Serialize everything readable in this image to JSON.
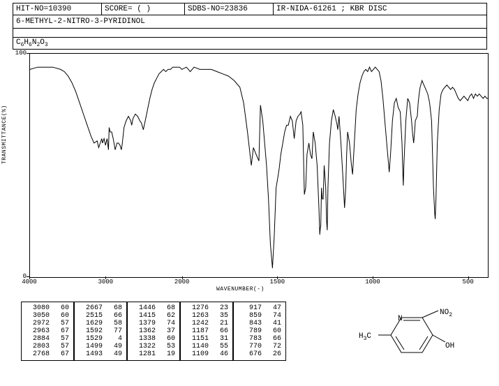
{
  "header": {
    "hit_no": "HIT-NO=10390",
    "score": "SCORE=   (   )",
    "sdbs_no": "SDBS-NO=23836",
    "source": "IR-NIDA-61261 ; KBR DISC",
    "compound_name": "6-METHYL-2-NITRO-3-PYRIDINOL",
    "formula_html": "C<sub>6</sub>H<sub>6</sub>N<sub>2</sub>O<sub>3</sub>"
  },
  "chart": {
    "type": "line",
    "x_label": "WAVENUMBER(-)",
    "y_label": "TRANSMITTANCE(%)",
    "xlim": [
      4000,
      400
    ],
    "ylim": [
      0,
      100
    ],
    "xticks": [
      4000,
      3000,
      2000,
      1500,
      1000,
      500
    ],
    "yticks": [
      0,
      100
    ],
    "x_breakpoint": 2000,
    "background_color": "#ffffff",
    "line_color": "#000000",
    "line_width": 1,
    "border_color": "#000000",
    "font_size": 9,
    "spectrum": [
      [
        4000,
        93
      ],
      [
        3900,
        94
      ],
      [
        3800,
        94
      ],
      [
        3700,
        94
      ],
      [
        3600,
        93
      ],
      [
        3550,
        92
      ],
      [
        3500,
        90
      ],
      [
        3450,
        87
      ],
      [
        3400,
        83
      ],
      [
        3350,
        78
      ],
      [
        3300,
        73
      ],
      [
        3250,
        68
      ],
      [
        3200,
        63
      ],
      [
        3160,
        60
      ],
      [
        3120,
        61
      ],
      [
        3100,
        58
      ],
      [
        3080,
        60
      ],
      [
        3060,
        62
      ],
      [
        3050,
        60
      ],
      [
        3030,
        62
      ],
      [
        3010,
        59
      ],
      [
        2990,
        62
      ],
      [
        2972,
        57
      ],
      [
        2963,
        67
      ],
      [
        2950,
        65
      ],
      [
        2930,
        65
      ],
      [
        2910,
        62
      ],
      [
        2884,
        57
      ],
      [
        2860,
        60
      ],
      [
        2840,
        60
      ],
      [
        2820,
        59
      ],
      [
        2803,
        57
      ],
      [
        2790,
        60
      ],
      [
        2768,
        67
      ],
      [
        2740,
        70
      ],
      [
        2710,
        72
      ],
      [
        2680,
        70
      ],
      [
        2667,
        68
      ],
      [
        2650,
        71
      ],
      [
        2620,
        73
      ],
      [
        2590,
        72
      ],
      [
        2560,
        70
      ],
      [
        2540,
        69
      ],
      [
        2515,
        66
      ],
      [
        2490,
        70
      ],
      [
        2460,
        75
      ],
      [
        2430,
        80
      ],
      [
        2400,
        84
      ],
      [
        2370,
        87
      ],
      [
        2340,
        89
      ],
      [
        2310,
        91
      ],
      [
        2280,
        92
      ],
      [
        2250,
        93
      ],
      [
        2220,
        92
      ],
      [
        2190,
        93
      ],
      [
        2160,
        93
      ],
      [
        2130,
        94
      ],
      [
        2100,
        94
      ],
      [
        2070,
        94
      ],
      [
        2040,
        94
      ],
      [
        2010,
        93
      ],
      [
        1980,
        94
      ],
      [
        1960,
        92
      ],
      [
        1940,
        94
      ],
      [
        1910,
        93
      ],
      [
        1880,
        93
      ],
      [
        1850,
        93
      ],
      [
        1820,
        92
      ],
      [
        1790,
        91
      ],
      [
        1760,
        90
      ],
      [
        1730,
        88
      ],
      [
        1700,
        85
      ],
      [
        1680,
        78
      ],
      [
        1660,
        65
      ],
      [
        1640,
        50
      ],
      [
        1629,
        58
      ],
      [
        1615,
        55
      ],
      [
        1600,
        52
      ],
      [
        1592,
        77
      ],
      [
        1580,
        70
      ],
      [
        1570,
        60
      ],
      [
        1560,
        50
      ],
      [
        1550,
        35
      ],
      [
        1540,
        15
      ],
      [
        1529,
        4
      ],
      [
        1520,
        18
      ],
      [
        1510,
        40
      ],
      [
        1500,
        45
      ],
      [
        1493,
        49
      ],
      [
        1485,
        55
      ],
      [
        1475,
        60
      ],
      [
        1465,
        65
      ],
      [
        1455,
        68
      ],
      [
        1446,
        68
      ],
      [
        1435,
        72
      ],
      [
        1425,
        70
      ],
      [
        1415,
        62
      ],
      [
        1405,
        70
      ],
      [
        1395,
        72
      ],
      [
        1385,
        73
      ],
      [
        1379,
        74
      ],
      [
        1370,
        68
      ],
      [
        1362,
        37
      ],
      [
        1355,
        40
      ],
      [
        1348,
        55
      ],
      [
        1338,
        60
      ],
      [
        1330,
        55
      ],
      [
        1322,
        53
      ],
      [
        1315,
        65
      ],
      [
        1305,
        60
      ],
      [
        1295,
        50
      ],
      [
        1285,
        30
      ],
      [
        1281,
        19
      ],
      [
        1278,
        22
      ],
      [
        1276,
        23
      ],
      [
        1272,
        40
      ],
      [
        1268,
        35
      ],
      [
        1263,
        35
      ],
      [
        1258,
        50
      ],
      [
        1250,
        40
      ],
      [
        1245,
        25
      ],
      [
        1242,
        21
      ],
      [
        1238,
        40
      ],
      [
        1230,
        60
      ],
      [
        1220,
        70
      ],
      [
        1210,
        75
      ],
      [
        1200,
        72
      ],
      [
        1190,
        68
      ],
      [
        1187,
        66
      ],
      [
        1180,
        72
      ],
      [
        1170,
        60
      ],
      [
        1160,
        45
      ],
      [
        1151,
        31
      ],
      [
        1145,
        40
      ],
      [
        1140,
        55
      ],
      [
        1135,
        65
      ],
      [
        1125,
        60
      ],
      [
        1115,
        50
      ],
      [
        1109,
        46
      ],
      [
        1100,
        60
      ],
      [
        1090,
        75
      ],
      [
        1080,
        82
      ],
      [
        1070,
        87
      ],
      [
        1060,
        90
      ],
      [
        1050,
        92
      ],
      [
        1040,
        93
      ],
      [
        1030,
        92
      ],
      [
        1020,
        94
      ],
      [
        1010,
        92
      ],
      [
        1000,
        93
      ],
      [
        990,
        94
      ],
      [
        980,
        93
      ],
      [
        970,
        92
      ],
      [
        960,
        88
      ],
      [
        950,
        80
      ],
      [
        940,
        70
      ],
      [
        930,
        60
      ],
      [
        920,
        50
      ],
      [
        917,
        47
      ],
      [
        910,
        55
      ],
      [
        900,
        70
      ],
      [
        890,
        78
      ],
      [
        880,
        80
      ],
      [
        870,
        76
      ],
      [
        859,
        74
      ],
      [
        850,
        60
      ],
      [
        845,
        45
      ],
      [
        843,
        41
      ],
      [
        840,
        50
      ],
      [
        830,
        70
      ],
      [
        820,
        80
      ],
      [
        810,
        78
      ],
      [
        800,
        70
      ],
      [
        795,
        65
      ],
      [
        789,
        60
      ],
      [
        785,
        64
      ],
      [
        783,
        66
      ],
      [
        780,
        70
      ],
      [
        775,
        71
      ],
      [
        770,
        72
      ],
      [
        765,
        78
      ],
      [
        760,
        82
      ],
      [
        755,
        85
      ],
      [
        745,
        88
      ],
      [
        735,
        86
      ],
      [
        725,
        84
      ],
      [
        715,
        82
      ],
      [
        705,
        78
      ],
      [
        695,
        70
      ],
      [
        685,
        40
      ],
      [
        678,
        28
      ],
      [
        676,
        26
      ],
      [
        672,
        35
      ],
      [
        665,
        60
      ],
      [
        655,
        75
      ],
      [
        645,
        82
      ],
      [
        635,
        84
      ],
      [
        625,
        85
      ],
      [
        615,
        86
      ],
      [
        605,
        85
      ],
      [
        595,
        84
      ],
      [
        585,
        85
      ],
      [
        575,
        84
      ],
      [
        565,
        82
      ],
      [
        555,
        80
      ],
      [
        545,
        79
      ],
      [
        535,
        80
      ],
      [
        525,
        81
      ],
      [
        515,
        80
      ],
      [
        505,
        79
      ],
      [
        495,
        81
      ],
      [
        485,
        82
      ],
      [
        475,
        80
      ],
      [
        465,
        82
      ],
      [
        455,
        81
      ],
      [
        445,
        82
      ],
      [
        435,
        81
      ],
      [
        425,
        80
      ],
      [
        415,
        81
      ],
      [
        405,
        80
      ],
      [
        400,
        80
      ]
    ]
  },
  "peak_table": {
    "columns": [
      [
        [
          3080,
          60
        ],
        [
          3050,
          60
        ],
        [
          2972,
          57
        ],
        [
          2963,
          67
        ],
        [
          2884,
          57
        ],
        [
          2803,
          57
        ],
        [
          2768,
          67
        ]
      ],
      [
        [
          2667,
          68
        ],
        [
          2515,
          66
        ],
        [
          1629,
          58
        ],
        [
          1592,
          77
        ],
        [
          1529,
          4
        ],
        [
          1499,
          49
        ],
        [
          1493,
          49
        ]
      ],
      [
        [
          1446,
          68
        ],
        [
          1415,
          62
        ],
        [
          1379,
          74
        ],
        [
          1362,
          37
        ],
        [
          1338,
          60
        ],
        [
          1322,
          53
        ],
        [
          1281,
          19
        ]
      ],
      [
        [
          1276,
          23
        ],
        [
          1263,
          35
        ],
        [
          1242,
          21
        ],
        [
          1187,
          66
        ],
        [
          1151,
          31
        ],
        [
          1140,
          55
        ],
        [
          1109,
          46
        ]
      ],
      [
        [
          917,
          47
        ],
        [
          859,
          74
        ],
        [
          843,
          41
        ],
        [
          789,
          60
        ],
        [
          783,
          66
        ],
        [
          770,
          72
        ],
        [
          676,
          26
        ]
      ]
    ],
    "font_size": 10,
    "border_color": "#000000"
  },
  "structure": {
    "labels": {
      "methyl": "H₃C",
      "nitrogen": "N",
      "nitro": "NO₂",
      "hydroxyl": "OH"
    },
    "line_color": "#000000",
    "line_width": 1,
    "font_size": 11
  }
}
